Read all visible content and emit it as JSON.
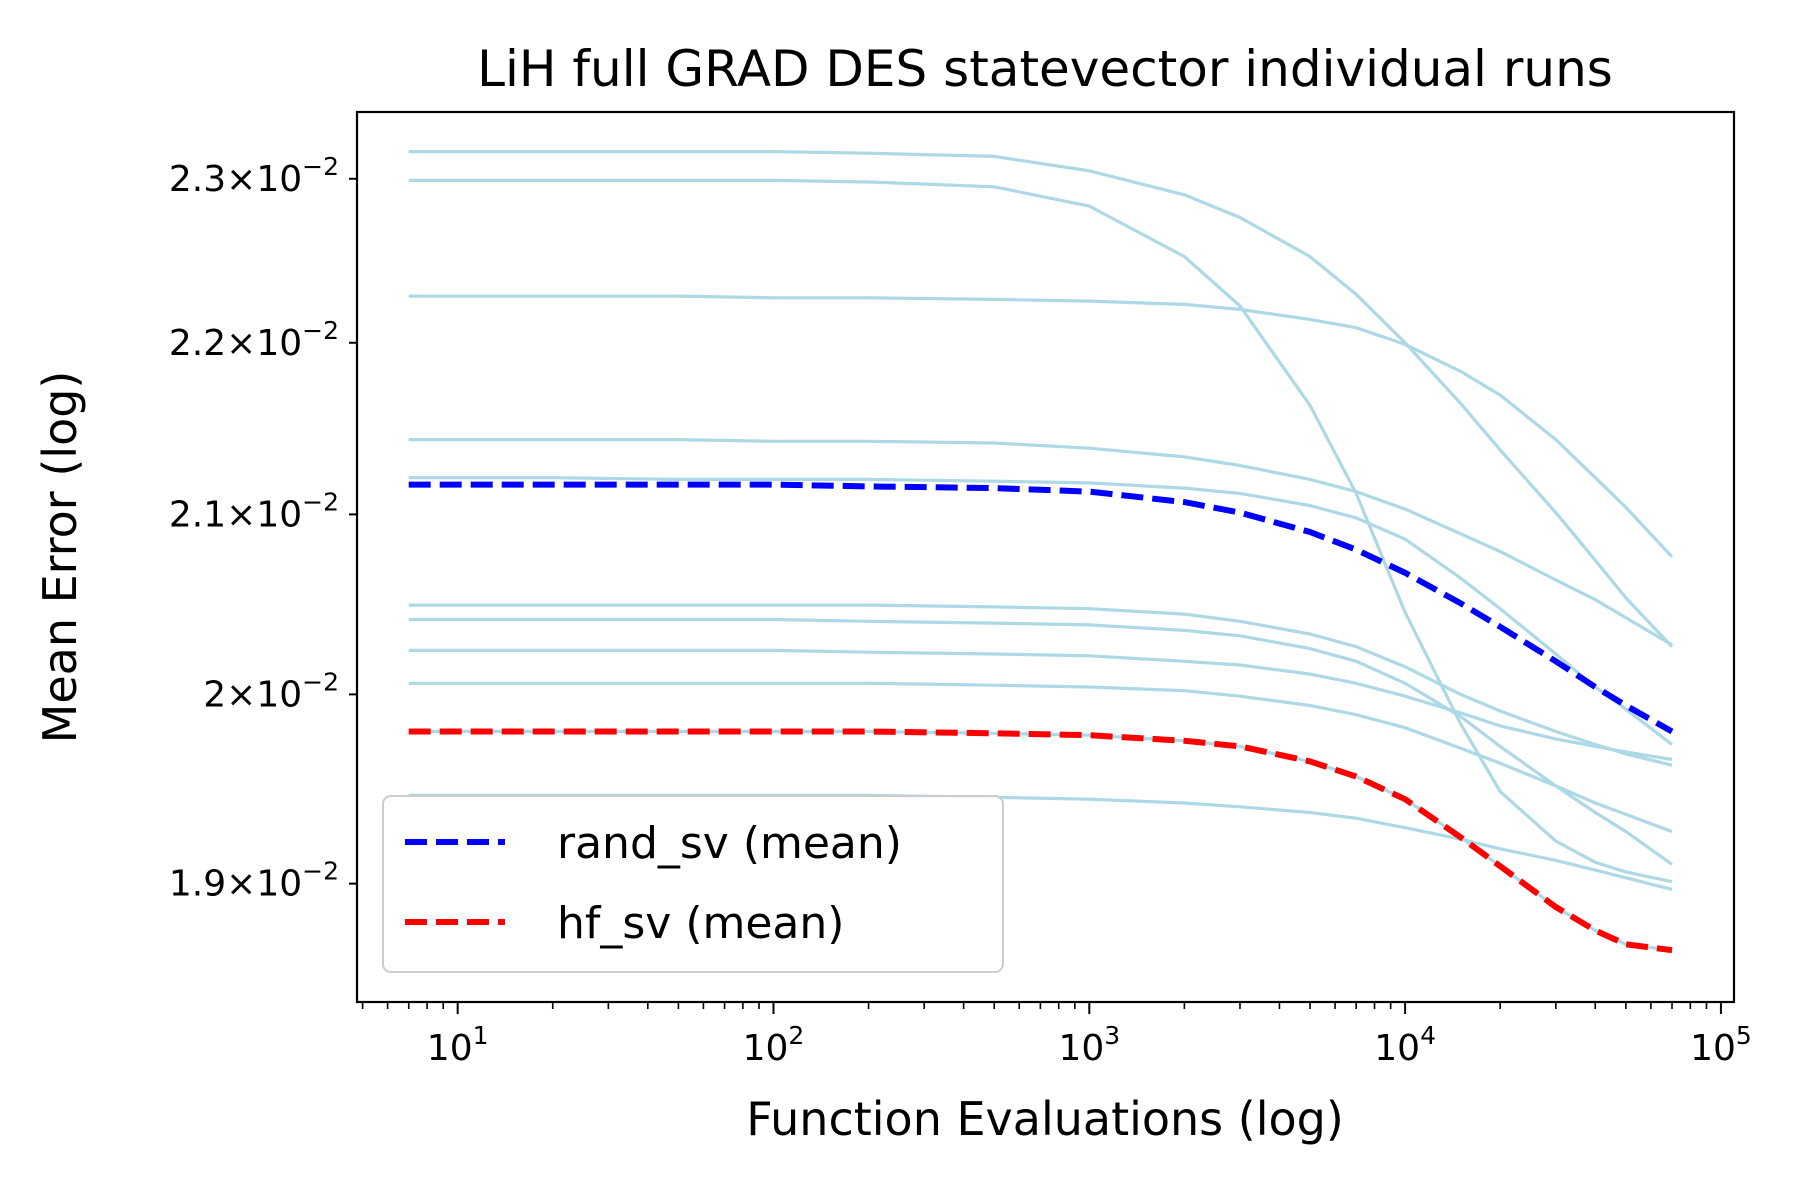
{
  "chart_data": {
    "type": "line",
    "title": "LiH full GRAD DES statevector individual runs",
    "xlabel": "Function Evaluations (log)",
    "ylabel": "Mean Error (log)",
    "xscale": "log",
    "yscale": "log",
    "xlim": [
      4.8,
      110000
    ],
    "ylim": [
      0.0184,
      0.02342
    ],
    "x_ticks": [
      {
        "value": 10,
        "base": "10",
        "exp": "1"
      },
      {
        "value": 100,
        "base": "10",
        "exp": "2"
      },
      {
        "value": 1000,
        "base": "10",
        "exp": "3"
      },
      {
        "value": 10000,
        "base": "10",
        "exp": "4"
      },
      {
        "value": 100000,
        "base": "10",
        "exp": "5"
      }
    ],
    "y_ticks": [
      {
        "value": 0.019,
        "mantissa": "1.9",
        "times": "×",
        "base": "10",
        "exp": "−2"
      },
      {
        "value": 0.02,
        "mantissa": "2",
        "times": "×",
        "base": "10",
        "exp": "−2"
      },
      {
        "value": 0.021,
        "mantissa": "2.1",
        "times": "×",
        "base": "10",
        "exp": "−2"
      },
      {
        "value": 0.022,
        "mantissa": "2.2",
        "times": "×",
        "base": "10",
        "exp": "−2"
      },
      {
        "value": 0.023,
        "mantissa": "2.3",
        "times": "×",
        "base": "10",
        "exp": "−2"
      }
    ],
    "x": [
      7,
      20,
      50,
      100,
      200,
      500,
      1000,
      2000,
      3000,
      5000,
      7000,
      10000,
      15000,
      20000,
      30000,
      40000,
      50000,
      70000
    ],
    "individual_runs": {
      "color": "#add8e6",
      "series": [
        {
          "values": [
            0.02317,
            0.02317,
            0.02317,
            0.02317,
            0.02316,
            0.02314,
            0.02305,
            0.0229,
            0.02276,
            0.02252,
            0.02229,
            0.022,
            0.02164,
            0.02137,
            0.02101,
            0.02074,
            0.02053,
            0.02026
          ]
        },
        {
          "values": [
            0.02299,
            0.02299,
            0.02299,
            0.02299,
            0.02298,
            0.02295,
            0.02283,
            0.02252,
            0.02222,
            0.02163,
            0.02112,
            0.02045,
            0.01984,
            0.01948,
            0.01922,
            0.01911,
            0.01906,
            0.01901
          ]
        },
        {
          "values": [
            0.02228,
            0.02228,
            0.02228,
            0.02227,
            0.02227,
            0.02226,
            0.02225,
            0.02223,
            0.0222,
            0.02214,
            0.02209,
            0.02199,
            0.02183,
            0.02169,
            0.02143,
            0.02121,
            0.02104,
            0.02076
          ]
        },
        {
          "values": [
            0.02143,
            0.02143,
            0.02143,
            0.02142,
            0.02142,
            0.02141,
            0.02138,
            0.02133,
            0.02128,
            0.0212,
            0.02113,
            0.02103,
            0.02089,
            0.02079,
            0.02063,
            0.02052,
            0.02042,
            0.02027
          ]
        },
        {
          "values": [
            0.02121,
            0.02121,
            0.0212,
            0.0212,
            0.0212,
            0.02119,
            0.02118,
            0.02115,
            0.02112,
            0.02105,
            0.02098,
            0.02086,
            0.02064,
            0.02047,
            0.02022,
            0.02004,
            0.01992,
            0.01973
          ]
        },
        {
          "values": [
            0.02049,
            0.02049,
            0.02049,
            0.02049,
            0.02049,
            0.02048,
            0.02047,
            0.02044,
            0.0204,
            0.02033,
            0.02026,
            0.02015,
            0.02,
            0.01991,
            0.0198,
            0.01973,
            0.01968,
            0.01962
          ]
        },
        {
          "values": [
            0.02041,
            0.02041,
            0.02041,
            0.02041,
            0.0204,
            0.02039,
            0.02038,
            0.02035,
            0.02032,
            0.02025,
            0.02018,
            0.02006,
            0.01988,
            0.01972,
            0.01951,
            0.01937,
            0.01927,
            0.0191
          ]
        },
        {
          "values": [
            0.02024,
            0.02024,
            0.02024,
            0.02024,
            0.02023,
            0.02022,
            0.02021,
            0.02018,
            0.02016,
            0.02011,
            0.02006,
            0.01999,
            0.0199,
            0.01983,
            0.01976,
            0.01972,
            0.01969,
            0.01965
          ]
        },
        {
          "values": [
            0.02006,
            0.02006,
            0.02006,
            0.02006,
            0.02006,
            0.02005,
            0.02004,
            0.02002,
            0.01999,
            0.01994,
            0.01989,
            0.01982,
            0.01971,
            0.01963,
            0.01951,
            0.01942,
            0.01936,
            0.01927
          ]
        },
        {
          "values": [
            0.0198,
            0.0198,
            0.0198,
            0.0198,
            0.0198,
            0.01979,
            0.01978,
            0.01975,
            0.01972,
            0.01964,
            0.01956,
            0.01944,
            0.01924,
            0.01909,
            0.01888,
            0.01876,
            0.01869,
            0.01866
          ]
        },
        {
          "values": [
            0.01946,
            0.01946,
            0.01946,
            0.01946,
            0.01946,
            0.01945,
            0.01944,
            0.01942,
            0.0194,
            0.01937,
            0.01934,
            0.01929,
            0.01923,
            0.01918,
            0.01912,
            0.01907,
            0.01903,
            0.01897
          ]
        }
      ]
    },
    "mean_series": [
      {
        "name": "rand_sv (mean)",
        "color": "#0000ff",
        "style": "dashed",
        "values": [
          0.02117,
          0.02117,
          0.02117,
          0.02117,
          0.02116,
          0.02115,
          0.02113,
          0.02107,
          0.02101,
          0.0209,
          0.0208,
          0.02067,
          0.0205,
          0.02037,
          0.02018,
          0.02004,
          0.01994,
          0.0198
        ]
      },
      {
        "name": "hf_sv (mean)",
        "color": "#ff0000",
        "style": "dashed",
        "values": [
          0.0198,
          0.0198,
          0.0198,
          0.0198,
          0.0198,
          0.01979,
          0.01978,
          0.01975,
          0.01972,
          0.01964,
          0.01956,
          0.01944,
          0.01924,
          0.01909,
          0.01888,
          0.01876,
          0.01869,
          0.01866
        ]
      }
    ],
    "legend": {
      "position": "lower-left",
      "entries": [
        "rand_sv (mean)",
        "hf_sv (mean)"
      ]
    },
    "grid": false
  }
}
